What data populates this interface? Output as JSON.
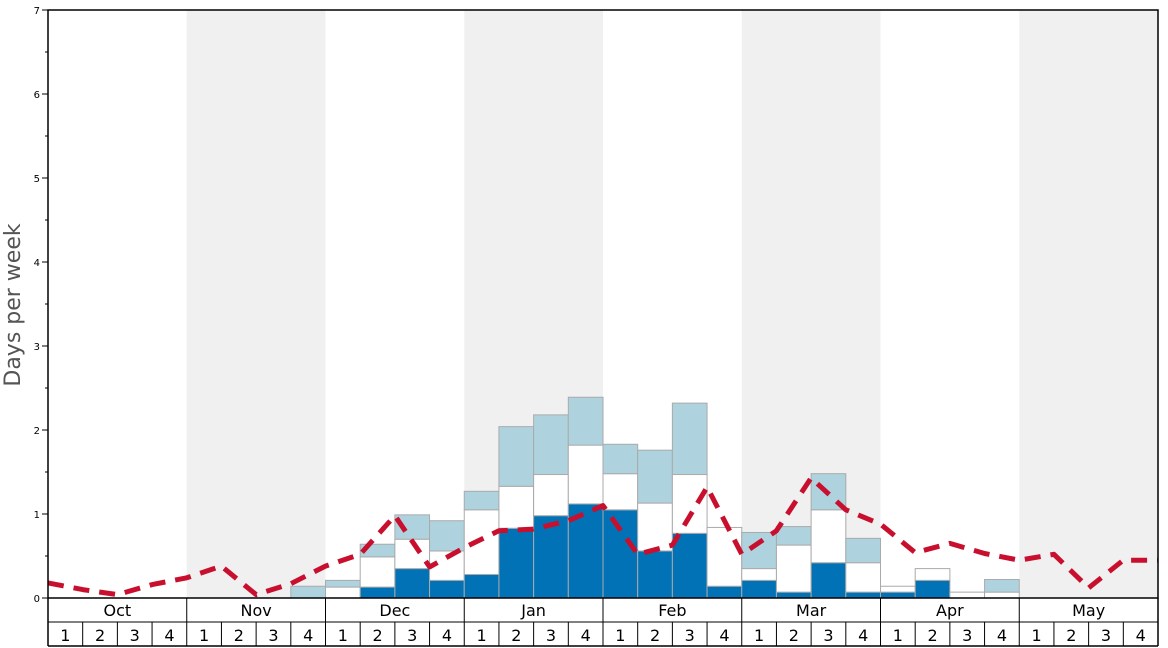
{
  "chart_data": {
    "type": "bar",
    "ylabel": "Days per week",
    "ylim": [
      0,
      7
    ],
    "yticks": [
      "0",
      "1",
      "2",
      "3",
      "4",
      "5",
      "6",
      "7"
    ],
    "months": [
      "Oct",
      "Nov",
      "Dec",
      "Jan",
      "Feb",
      "Mar",
      "Apr",
      "May"
    ],
    "week_labels": [
      "1",
      "2",
      "3",
      "4"
    ],
    "colors": {
      "dark": "#0072b5",
      "white": "#ffffff",
      "light": "#aed3df",
      "line": "#c8102e",
      "shade": "#f0f0f0"
    },
    "stacked_bars": {
      "layer_names": [
        "dark",
        "white",
        "light"
      ],
      "weeks": [
        [
          0,
          0,
          0
        ],
        [
          0,
          0,
          0
        ],
        [
          0,
          0,
          0
        ],
        [
          0,
          0,
          0
        ],
        [
          0,
          0,
          0
        ],
        [
          0,
          0,
          0
        ],
        [
          0,
          0,
          0
        ],
        [
          0,
          0,
          0.14
        ],
        [
          0,
          0.13,
          0.08
        ],
        [
          0.13,
          0.36,
          0.15
        ],
        [
          0.35,
          0.35,
          0.29
        ],
        [
          0.21,
          0.35,
          0.36
        ],
        [
          0.28,
          0.77,
          0.22
        ],
        [
          0.83,
          0.5,
          0.71
        ],
        [
          0.98,
          0.49,
          0.71
        ],
        [
          1.12,
          0.7,
          0.57
        ],
        [
          1.05,
          0.43,
          0.35
        ],
        [
          0.56,
          0.57,
          0.63
        ],
        [
          0.77,
          0.7,
          0.85
        ],
        [
          0.14,
          0.7,
          0
        ],
        [
          0.21,
          0.14,
          0.43
        ],
        [
          0.07,
          0.56,
          0.22
        ],
        [
          0.42,
          0.63,
          0.43
        ],
        [
          0.07,
          0.35,
          0.29
        ],
        [
          0.07,
          0.07,
          0
        ],
        [
          0.21,
          0.14,
          0
        ],
        [
          0,
          0.07,
          0
        ],
        [
          0,
          0.07,
          0.15
        ],
        [
          0,
          0,
          0
        ],
        [
          0,
          0,
          0
        ],
        [
          0,
          0,
          0
        ],
        [
          0,
          0,
          0
        ]
      ]
    },
    "average_line": [
      0.18,
      0.1,
      0.04,
      0.16,
      0.24,
      0.38,
      0.04,
      0.17,
      0.38,
      0.52,
      0.98,
      0.37,
      0.6,
      0.8,
      0.82,
      0.92,
      1.1,
      0.52,
      0.63,
      1.32,
      0.52,
      0.8,
      1.43,
      1.05,
      0.88,
      0.54,
      0.65,
      0.53,
      0.45,
      0.52,
      0.12,
      0.45,
      0.45
    ]
  }
}
